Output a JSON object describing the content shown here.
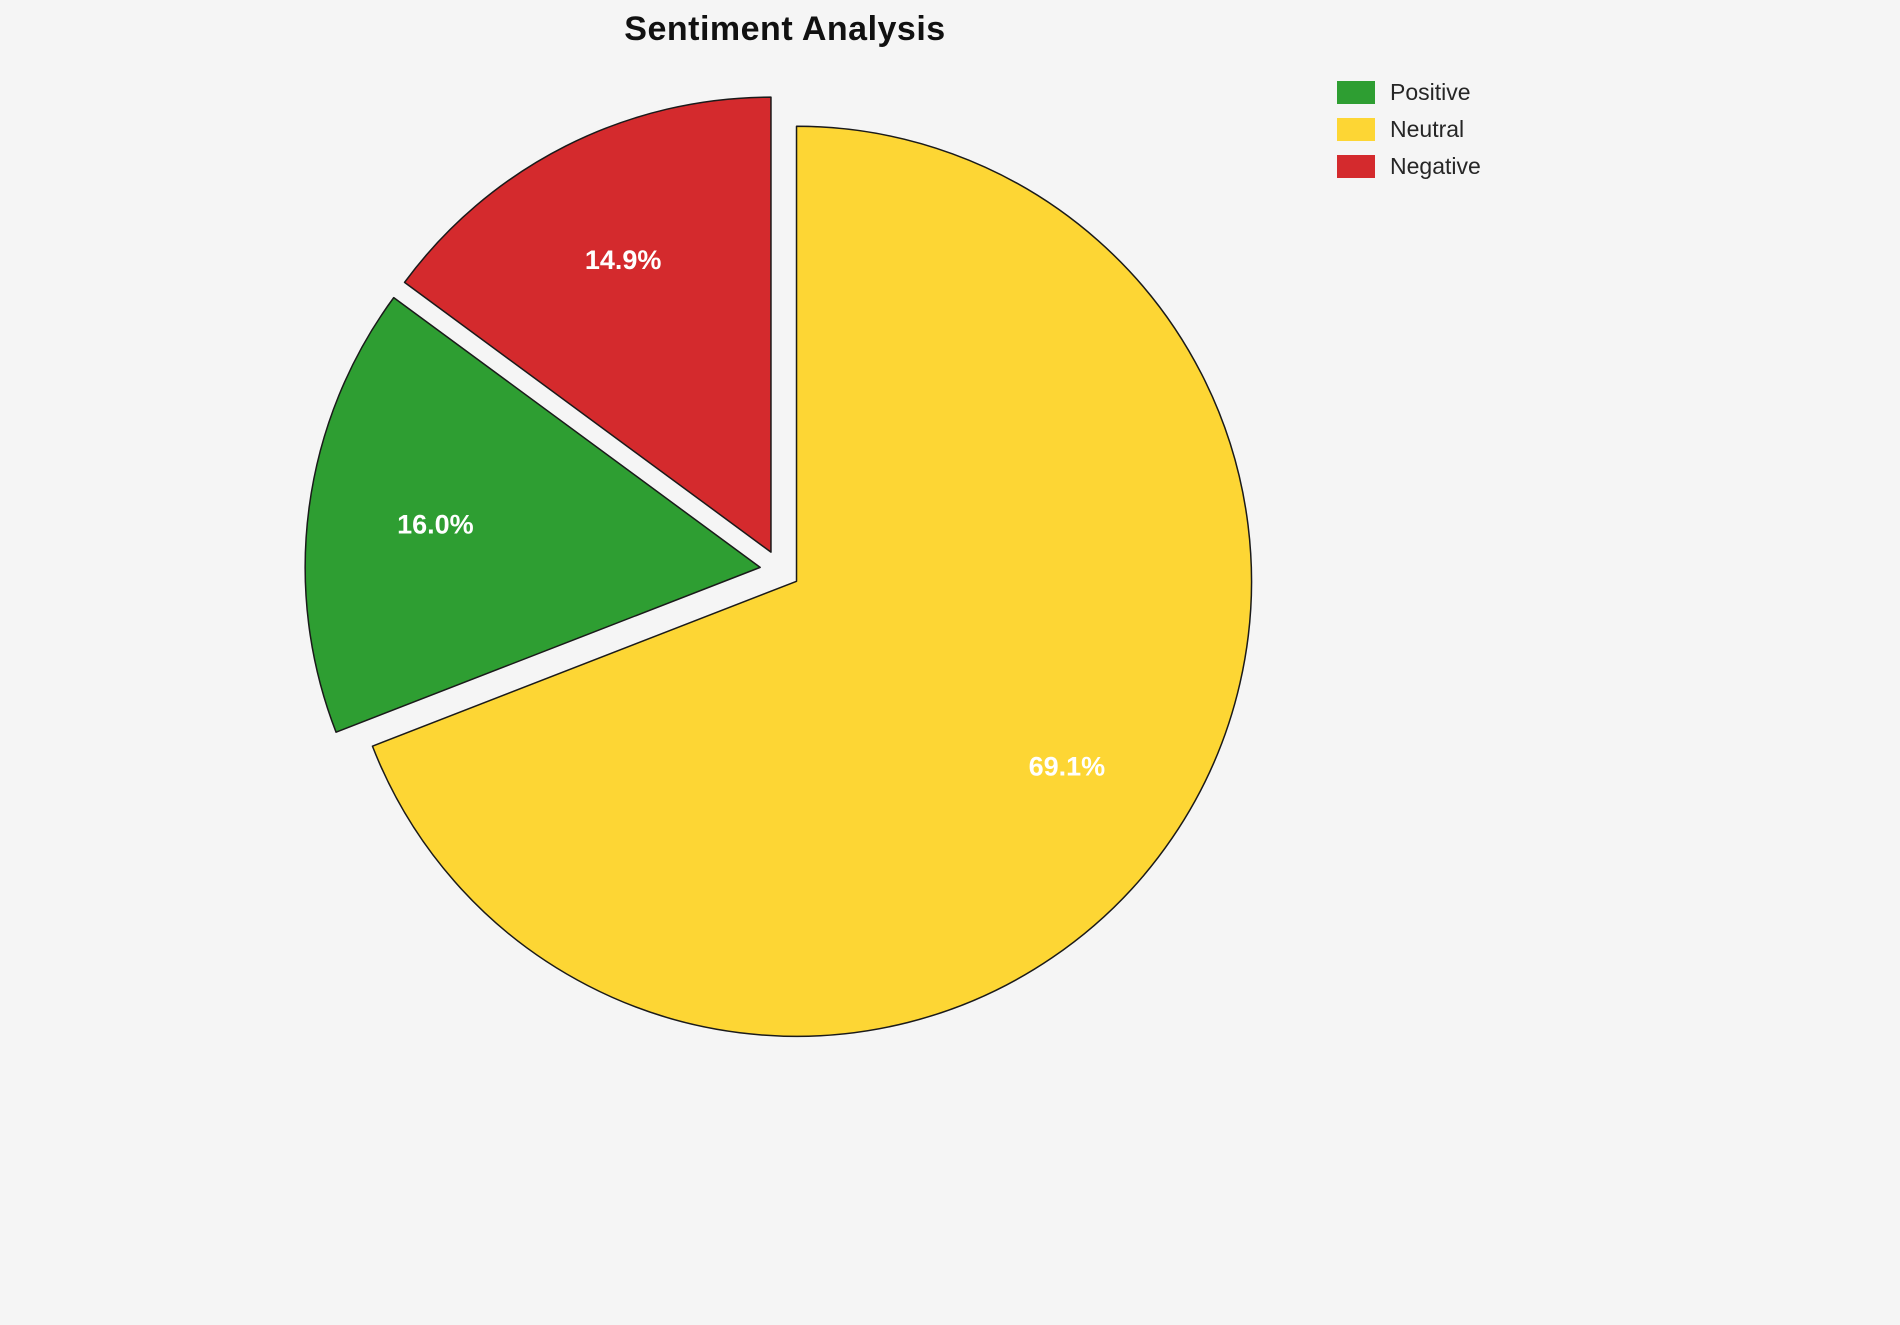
{
  "page": {
    "background": "#f5f5f5"
  },
  "chart_data": {
    "type": "pie",
    "title": "Sentiment Analysis",
    "labels": [
      "Positive",
      "Neutral",
      "Negative"
    ],
    "values": [
      16.0,
      69.1,
      14.9
    ],
    "pct_labels": [
      "16.0%",
      "69.1%",
      "14.9%"
    ],
    "colors": [
      "#2e9e32",
      "#fdd634",
      "#d42a2d"
    ],
    "edge_color": "#1a1a1a",
    "pct_label_color": "#ffffff",
    "startangle": 90,
    "counterclock": false,
    "draw_order": [
      1,
      0,
      2
    ],
    "explode": 0.044,
    "pctdistance": 0.72,
    "legend": {
      "position": "upper right",
      "entries": [
        "Positive",
        "Neutral",
        "Negative"
      ]
    }
  }
}
